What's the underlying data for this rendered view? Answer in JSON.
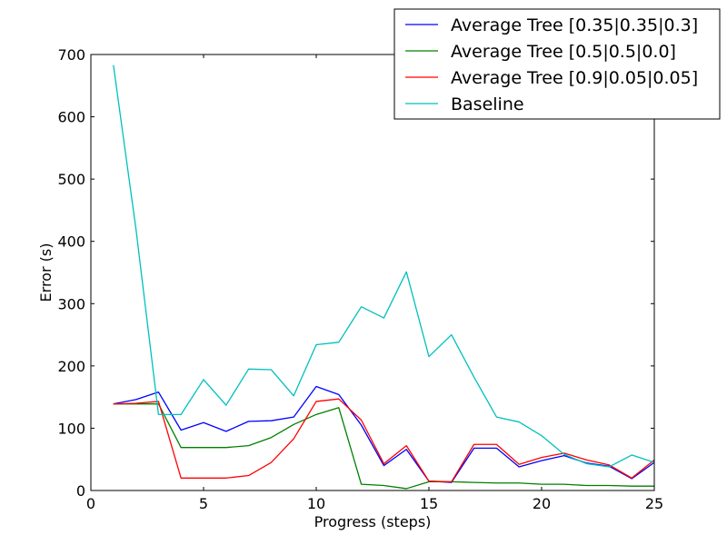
{
  "chart_data": {
    "type": "line",
    "title": "",
    "xlabel": "Progress (steps)",
    "ylabel": "Error (s)",
    "xlim": [
      0,
      25
    ],
    "ylim": [
      0,
      700
    ],
    "xticks": [
      "0",
      "5",
      "10",
      "15",
      "20",
      "25"
    ],
    "yticks": [
      "0",
      "100",
      "200",
      "300",
      "400",
      "500",
      "600",
      "700"
    ],
    "grid": false,
    "legend_position": "top-right",
    "x": [
      1,
      2,
      3,
      4,
      5,
      6,
      7,
      8,
      9,
      10,
      11,
      12,
      13,
      14,
      15,
      16,
      17,
      18,
      19,
      20,
      21,
      22,
      23,
      24,
      25
    ],
    "series": [
      {
        "name": "Average Tree [0.35|0.35|0.3]",
        "color": "#0000ff",
        "values": [
          139,
          146,
          158,
          97,
          109,
          95,
          111,
          112,
          118,
          167,
          154,
          105,
          40,
          66,
          15,
          13,
          68,
          68,
          38,
          48,
          56,
          44,
          39,
          19,
          45
        ]
      },
      {
        "name": "Average Tree [0.5|0.5|0.0]",
        "color": "#008000",
        "values": [
          139,
          139,
          139,
          69,
          69,
          69,
          72,
          85,
          106,
          122,
          133,
          10,
          8,
          3,
          14,
          14,
          13,
          12,
          12,
          10,
          10,
          8,
          8,
          7,
          7
        ]
      },
      {
        "name": "Average Tree [0.9|0.05|0.05]",
        "color": "#ff0000",
        "values": [
          139,
          140,
          143,
          20,
          20,
          20,
          24,
          45,
          83,
          143,
          147,
          113,
          43,
          72,
          15,
          14,
          74,
          74,
          42,
          53,
          60,
          49,
          41,
          20,
          49
        ]
      },
      {
        "name": "Baseline",
        "color": "#00bfbf",
        "values": [
          683,
          420,
          122,
          122,
          178,
          137,
          195,
          194,
          152,
          234,
          238,
          295,
          277,
          351,
          215,
          250,
          182,
          118,
          110,
          88,
          58,
          43,
          38,
          57,
          45
        ]
      }
    ]
  }
}
